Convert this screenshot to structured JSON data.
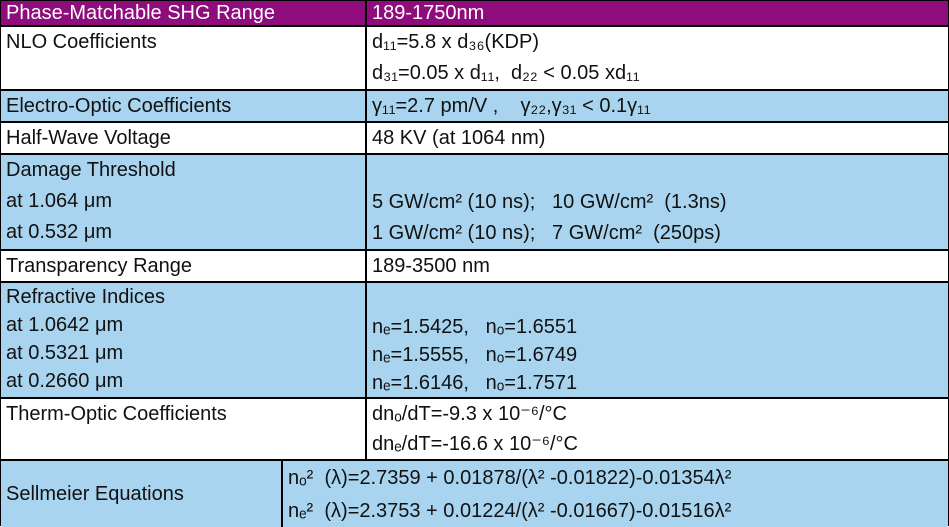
{
  "table": {
    "header": [
      "Phase-Matchable SHG Range",
      "189-1750nm"
    ],
    "rows": [
      {
        "left": [
          "NLO Coefficients"
        ],
        "right": [
          "d₁₁=5.8 x d₃₆(KDP)",
          "d₃₁=0.05 x d₁₁,  d₂₂ < 0.05 xd₁₁"
        ]
      },
      {
        "left": [
          "Electro-Optic Coefficients"
        ],
        "right": [
          "γ₁₁=2.7 pm/V ,    γ₂₂,γ₃₁ < 0.1γ₁₁"
        ]
      },
      {
        "left": [
          "Half-Wave Voltage"
        ],
        "right": [
          "48 KV (at 1064 nm)"
        ]
      },
      {
        "left": [
          "Damage Threshold",
          "at 1.064 μm",
          "at 0.532 μm"
        ],
        "right": [
          "5 GW/cm² (10 ns);   10 GW/cm²  (1.3ns)",
          "1 GW/cm² (10 ns);   7 GW/cm²  (250ps)"
        ]
      },
      {
        "left": [
          "Transparency Range"
        ],
        "right": [
          "189-3500 nm"
        ]
      },
      {
        "left": [
          "Refractive Indices",
          "at 1.0642 μm",
          "at 0.5321 μm",
          "at 0.2660 μm"
        ],
        "right": [
          "nₑ=1.5425,   nₒ=1.6551",
          "nₑ=1.5555,   nₒ=1.6749",
          "nₑ=1.6146,   nₒ=1.7571"
        ]
      },
      {
        "left": [
          "Therm-Optic Coefficients"
        ],
        "right": [
          "dnₒ/dT=-9.3 x 10⁻⁶/°C",
          "dnₑ/dT=-16.6 x 10⁻⁶/°C"
        ]
      },
      {
        "left": [
          "Sellmeier Equations"
        ],
        "right": [
          "nₒ²  (λ)=2.7359 + 0.01878/(λ² -0.01822)-0.01354λ²",
          "nₑ²  (λ)=2.3753 + 0.01224/(λ² -0.01667)-0.01516λ²"
        ]
      }
    ]
  }
}
